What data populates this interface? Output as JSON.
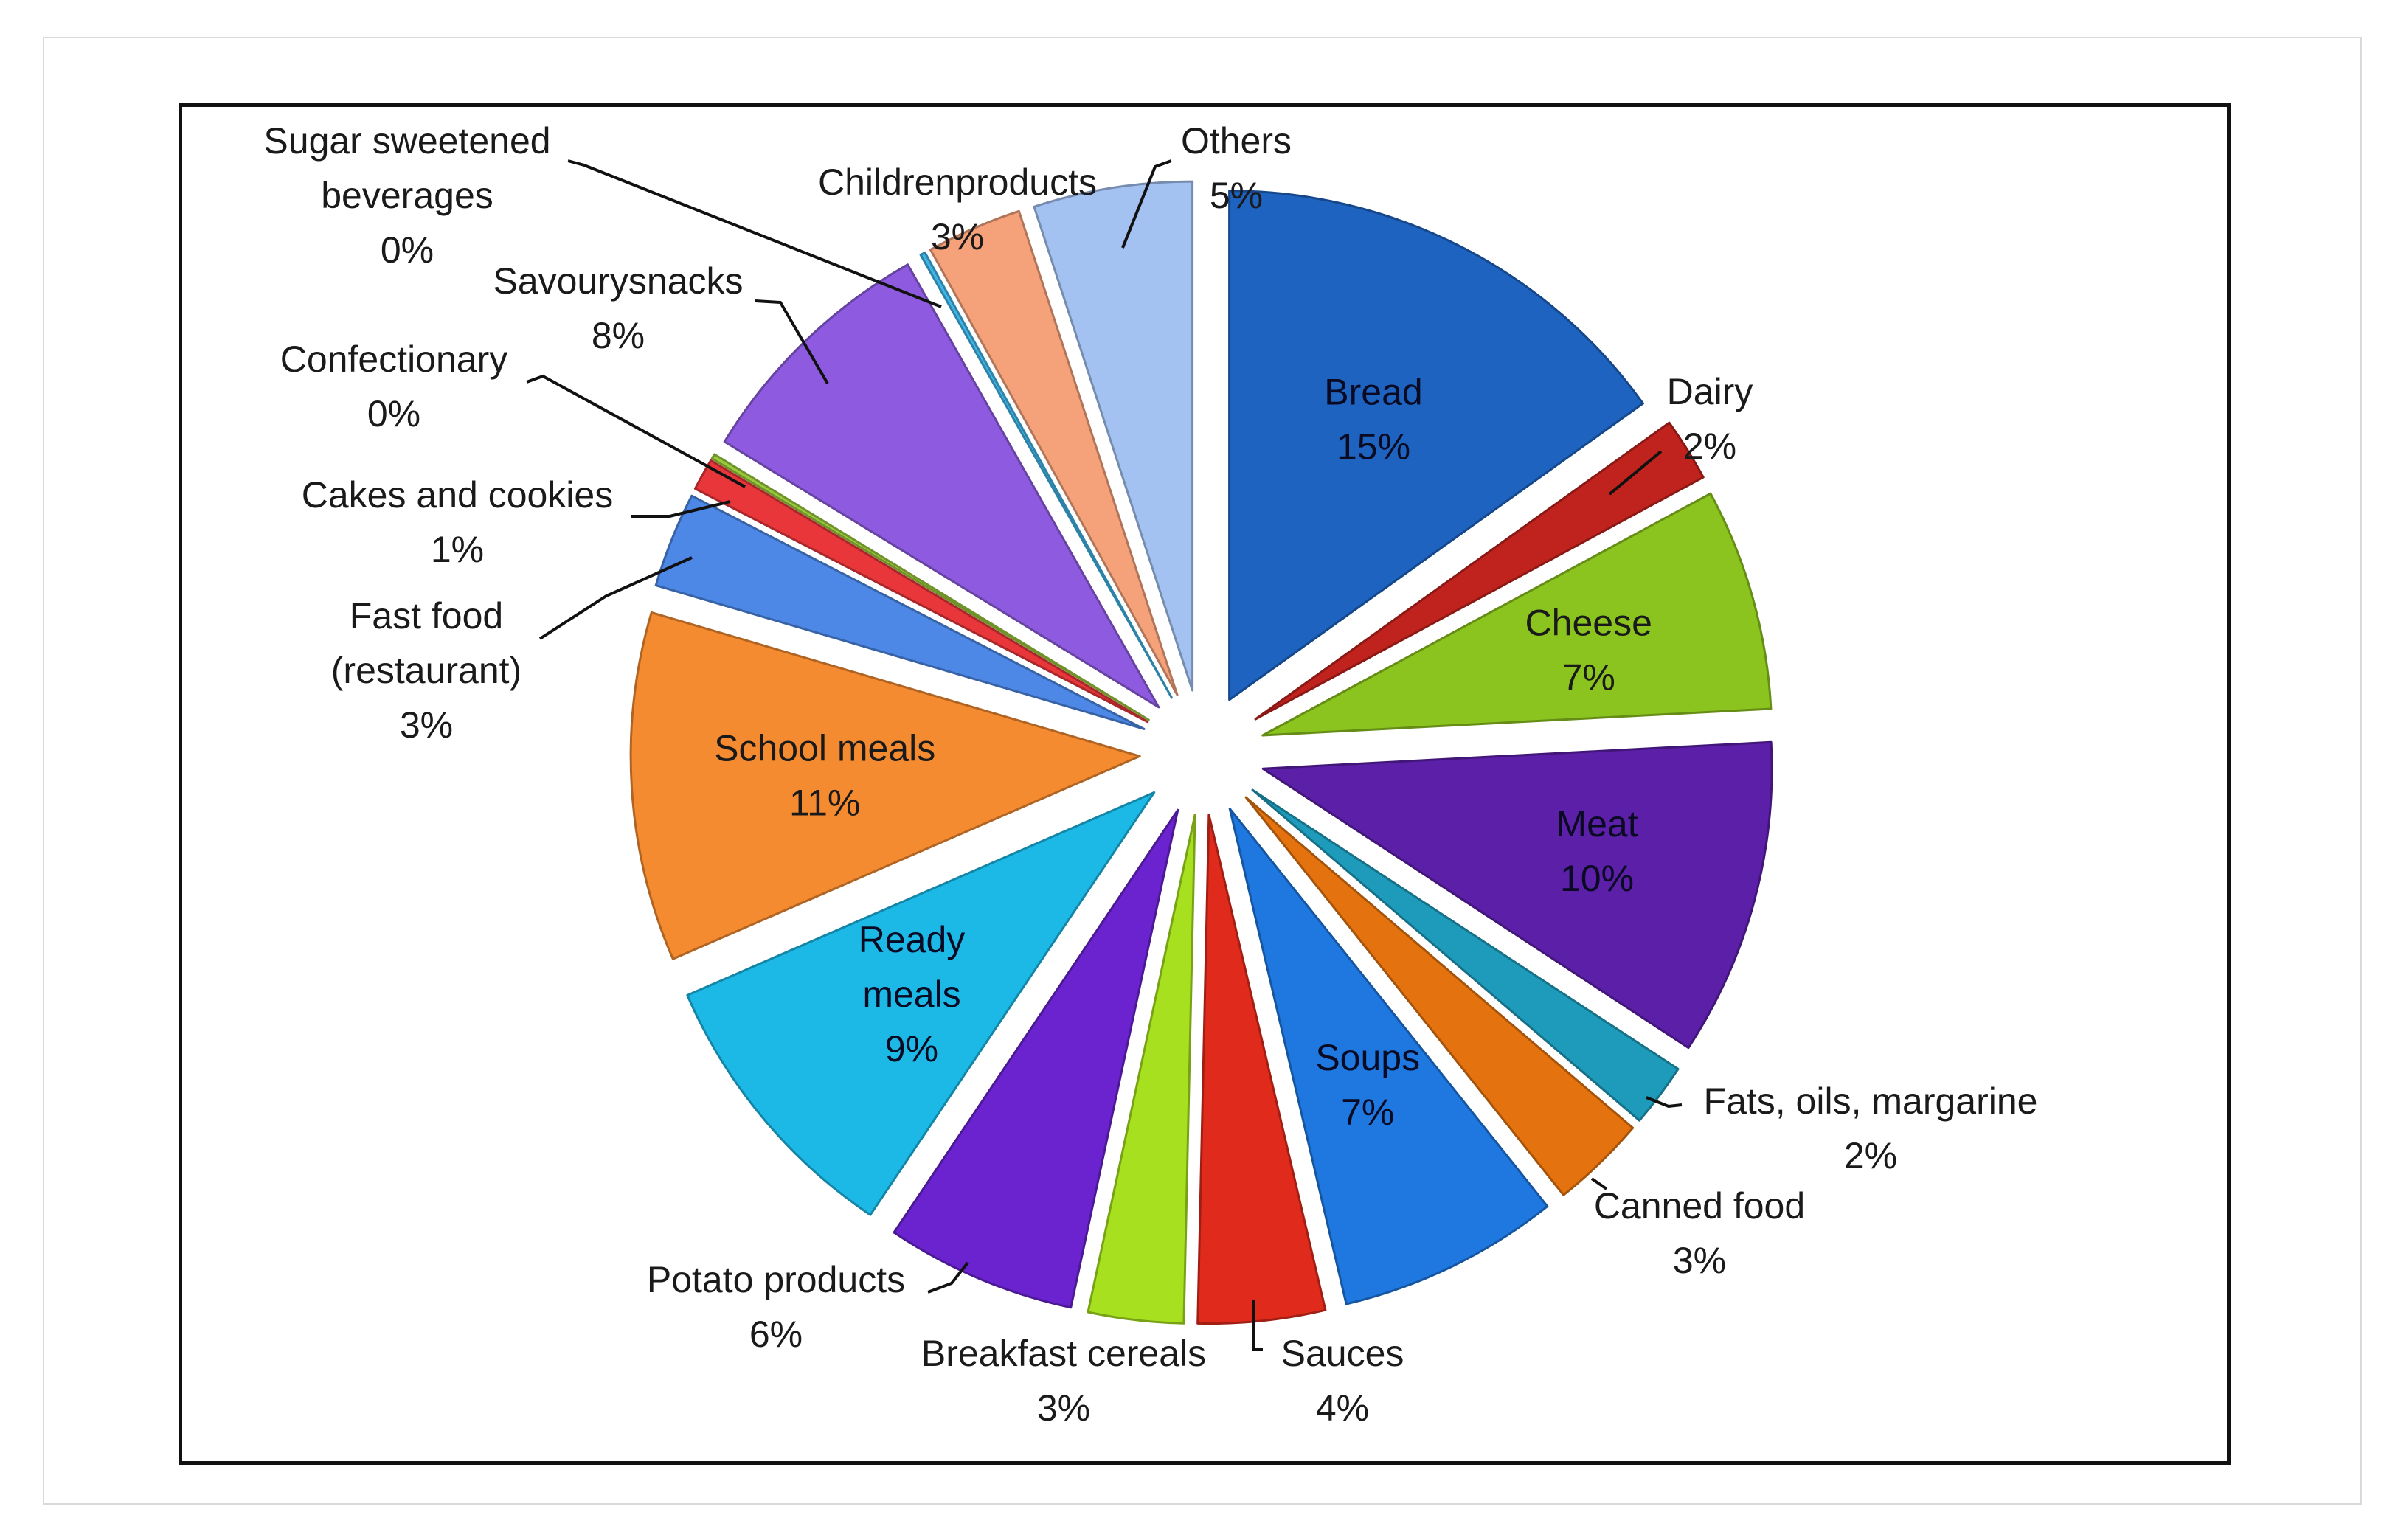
{
  "chart_data": {
    "type": "pie",
    "title": "",
    "exploded": true,
    "slices": [
      {
        "label": "Bread",
        "percent": 15,
        "value_label": "15%",
        "color": "#1d63bf",
        "label_inside": true
      },
      {
        "label": "Dairy",
        "percent": 2,
        "value_label": "2%",
        "color": "#c0231d",
        "label_inside": false
      },
      {
        "label": "Cheese",
        "percent": 7,
        "value_label": "7%",
        "color": "#8cc41f",
        "label_inside": true
      },
      {
        "label": "Meat",
        "percent": 10,
        "value_label": "10%",
        "color": "#5b1fa8",
        "label_inside": true
      },
      {
        "label": "Fats, oils, margarine",
        "percent": 2,
        "value_label": "2%",
        "color": "#1e9bbb",
        "label_inside": false
      },
      {
        "label": "Canned food",
        "percent": 3,
        "value_label": "3%",
        "color": "#e4730f",
        "label_inside": false
      },
      {
        "label": "Soups",
        "percent": 7,
        "value_label": "7%",
        "color": "#1f78df",
        "label_inside": true
      },
      {
        "label": "Sauces",
        "percent": 4,
        "value_label": "4%",
        "color": "#e02a1c",
        "label_inside": false
      },
      {
        "label": "Breakfast cereals",
        "percent": 3,
        "value_label": "3%",
        "color": "#a6e01e",
        "label_inside": false
      },
      {
        "label": "Potato products",
        "percent": 6,
        "value_label": "6%",
        "color": "#6a23cf",
        "label_inside": false
      },
      {
        "label": "Ready meals",
        "percent": 9,
        "value_label": "9%",
        "color": "#1cb9e6",
        "label_inside": true
      },
      {
        "label": "School meals",
        "percent": 11,
        "value_label": "11%",
        "color": "#f58b30",
        "label_inside": true
      },
      {
        "label": "Fast food (restaurant)",
        "percent": 3,
        "value_label": "3%",
        "color": "#4d88e6",
        "label_inside": false
      },
      {
        "label": "Cakes and cookies",
        "percent": 1,
        "value_label": "1%",
        "color": "#e8363a",
        "label_inside": false
      },
      {
        "label": "Confectionary",
        "percent": 0,
        "value_label": "0%",
        "color": "#9acb3c",
        "label_inside": false
      },
      {
        "label": "Savourysnacks",
        "percent": 8,
        "value_label": "8%",
        "color": "#8e5be0",
        "label_inside": false
      },
      {
        "label": "Sugar sweetened beverages",
        "percent": 0,
        "value_label": "0%",
        "color": "#3fb5e8",
        "label_inside": false
      },
      {
        "label": "Childrenproducts",
        "percent": 3,
        "value_label": "3%",
        "color": "#f5a27a",
        "label_inside": false
      },
      {
        "label": "Others",
        "percent": 5,
        "value_label": "5%",
        "color": "#a3c2f2",
        "label_inside": false
      }
    ]
  }
}
